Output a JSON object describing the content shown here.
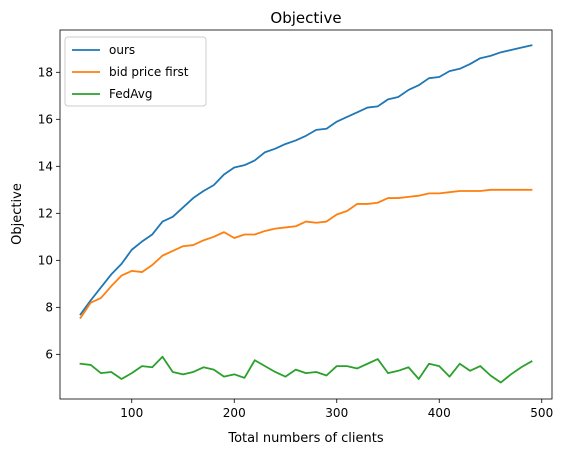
{
  "chart_data": {
    "type": "line",
    "title": "Objective",
    "xlabel": "Total numbers of clients",
    "ylabel": "Objective",
    "xlim": [
      30,
      510
    ],
    "ylim": [
      4.1,
      19.8
    ],
    "xticks": [
      100,
      200,
      300,
      400,
      500
    ],
    "yticks": [
      6,
      8,
      10,
      12,
      14,
      16,
      18
    ],
    "grid": false,
    "legend_position": "top-left",
    "x": [
      50,
      60,
      70,
      80,
      90,
      100,
      110,
      120,
      130,
      140,
      150,
      160,
      170,
      180,
      190,
      200,
      210,
      220,
      230,
      240,
      250,
      260,
      270,
      280,
      290,
      300,
      310,
      320,
      330,
      340,
      350,
      360,
      370,
      380,
      390,
      400,
      410,
      420,
      430,
      440,
      450,
      460,
      470,
      480,
      490
    ],
    "series": [
      {
        "name": "ours",
        "color": "#1f77b4",
        "values": [
          7.7,
          8.3,
          8.85,
          9.4,
          9.85,
          10.45,
          10.8,
          11.1,
          11.65,
          11.85,
          12.25,
          12.65,
          12.95,
          13.2,
          13.65,
          13.95,
          14.05,
          14.25,
          14.6,
          14.75,
          14.95,
          15.1,
          15.3,
          15.55,
          15.6,
          15.9,
          16.1,
          16.3,
          16.5,
          16.55,
          16.85,
          16.95,
          17.25,
          17.45,
          17.75,
          17.8,
          18.05,
          18.15,
          18.35,
          18.6,
          18.7,
          18.85,
          18.95,
          19.05,
          19.15
        ]
      },
      {
        "name": "bid price first",
        "color": "#ff7f0e",
        "values": [
          7.55,
          8.2,
          8.4,
          8.9,
          9.35,
          9.55,
          9.5,
          9.8,
          10.2,
          10.4,
          10.6,
          10.65,
          10.85,
          11.0,
          11.2,
          10.95,
          11.1,
          11.1,
          11.25,
          11.35,
          11.4,
          11.45,
          11.65,
          11.6,
          11.65,
          11.95,
          12.1,
          12.4,
          12.4,
          12.45,
          12.65,
          12.65,
          12.7,
          12.75,
          12.85,
          12.85,
          12.9,
          12.95,
          12.95,
          12.95,
          13.0,
          13.0,
          13.0,
          13.0,
          13.0
        ]
      },
      {
        "name": "FedAvg",
        "color": "#2ca02c",
        "values": [
          5.6,
          5.55,
          5.2,
          5.25,
          4.95,
          5.2,
          5.5,
          5.45,
          5.9,
          5.25,
          5.15,
          5.25,
          5.45,
          5.35,
          5.05,
          5.15,
          5.0,
          5.75,
          5.5,
          5.25,
          5.05,
          5.35,
          5.2,
          5.25,
          5.1,
          5.5,
          5.5,
          5.4,
          5.6,
          5.8,
          5.2,
          5.3,
          5.45,
          4.95,
          5.6,
          5.5,
          5.05,
          5.6,
          5.3,
          5.5,
          5.1,
          4.8,
          5.15,
          5.45,
          5.7
        ]
      }
    ]
  }
}
